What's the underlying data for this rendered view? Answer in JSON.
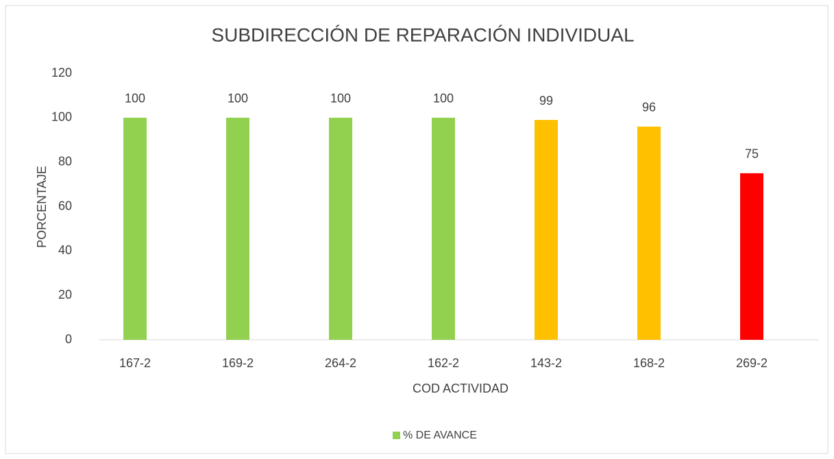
{
  "chart_data": {
    "type": "bar",
    "title": "SUBDIRECCIÓN DE REPARACIÓN INDIVIDUAL",
    "x_label": "COD ACTIVIDAD",
    "y_label": "PORCENTAJE",
    "categories": [
      "167-2",
      "169-2",
      "264-2",
      "162-2",
      "143-2",
      "168-2",
      "269-2"
    ],
    "series": [
      {
        "name": "% DE AVANCE",
        "color": "#92d050",
        "values": [
          100,
          100,
          100,
          100,
          99,
          96,
          75
        ],
        "colors": [
          "#92d050",
          "#92d050",
          "#92d050",
          "#92d050",
          "#ffc000",
          "#ffc000",
          "#ff0000"
        ]
      }
    ],
    "ylim": [
      0,
      120
    ],
    "yticks": [
      0,
      20,
      40,
      60,
      80,
      100,
      120
    ],
    "grid": false,
    "legend": "bottom"
  }
}
